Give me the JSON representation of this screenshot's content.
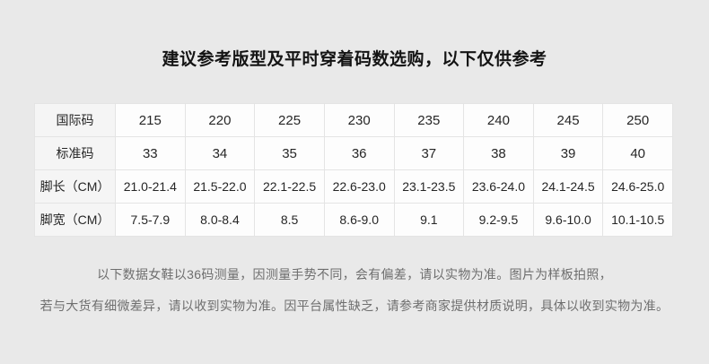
{
  "page": {
    "title": "建议参考版型及平时穿着码数选购，以下仅供参考",
    "background_color": "#e9e9e9",
    "label_cell_color": "#f5f5f5",
    "value_cell_color": "#fdfdfd",
    "border_color": "#e4e4e4",
    "footer_text_color": "#6e6e6e"
  },
  "size_table": {
    "rows": [
      {
        "label": "国际码",
        "values": [
          "215",
          "220",
          "225",
          "230",
          "235",
          "240",
          "245",
          "250"
        ]
      },
      {
        "label": "标准码",
        "values": [
          "33",
          "34",
          "35",
          "36",
          "37",
          "38",
          "39",
          "40"
        ]
      },
      {
        "label": "脚长（CM）",
        "values": [
          "21.0-21.4",
          "21.5-22.0",
          "22.1-22.5",
          "22.6-23.0",
          "23.1-23.5",
          "23.6-24.0",
          "24.1-24.5",
          "24.6-25.0"
        ]
      },
      {
        "label": "脚宽（CM）",
        "values": [
          "7.5-7.9",
          "8.0-8.4",
          "8.5",
          "8.6-9.0",
          "9.1",
          "9.2-9.5",
          "9.6-10.0",
          "10.1-10.5"
        ]
      }
    ]
  },
  "footer": {
    "line1": "以下数据女鞋以36码测量，因测量手势不同，会有偏差，请以实物为准。图片为样板拍照，",
    "line2": "若与大货有细微差异，请以收到实物为准。因平台属性缺乏，请参考商家提供材质说明，具体以收到实物为准。"
  }
}
